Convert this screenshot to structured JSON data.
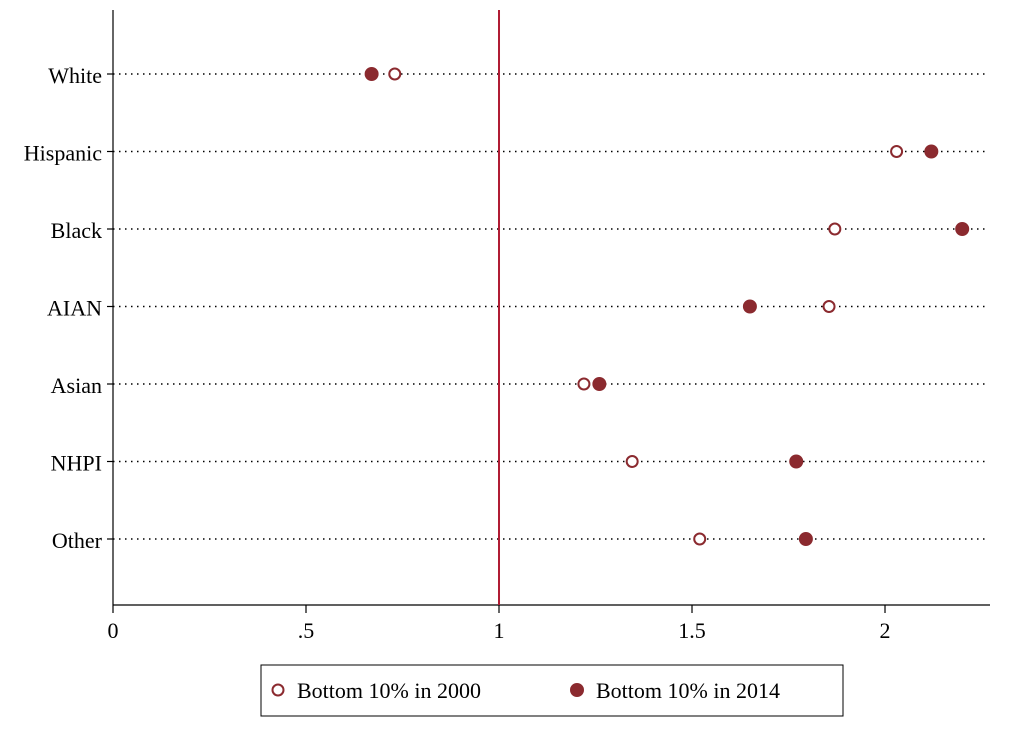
{
  "chart_data": {
    "type": "dot",
    "categories": [
      "White",
      "Hispanic",
      "Black",
      "AIAN",
      "Asian",
      "NHPI",
      "Other"
    ],
    "series": [
      {
        "name": "Bottom 10% in 2000",
        "color": "#8b2a2f",
        "marker": "hollow",
        "values": [
          0.73,
          2.03,
          1.87,
          1.855,
          1.22,
          1.345,
          1.52
        ]
      },
      {
        "name": "Bottom 10% in 2014",
        "color": "#8b2a2f",
        "marker": "filled",
        "values": [
          0.67,
          2.12,
          2.2,
          1.65,
          1.26,
          1.77,
          1.795
        ]
      }
    ],
    "xlim": [
      0,
      2.272
    ],
    "xticks": [
      0,
      {
        "value": 0.5,
        "label": ".5"
      },
      1,
      1.5,
      2
    ],
    "reference_line": 1,
    "reference_color": "#b01c34",
    "legend": "bottom"
  }
}
